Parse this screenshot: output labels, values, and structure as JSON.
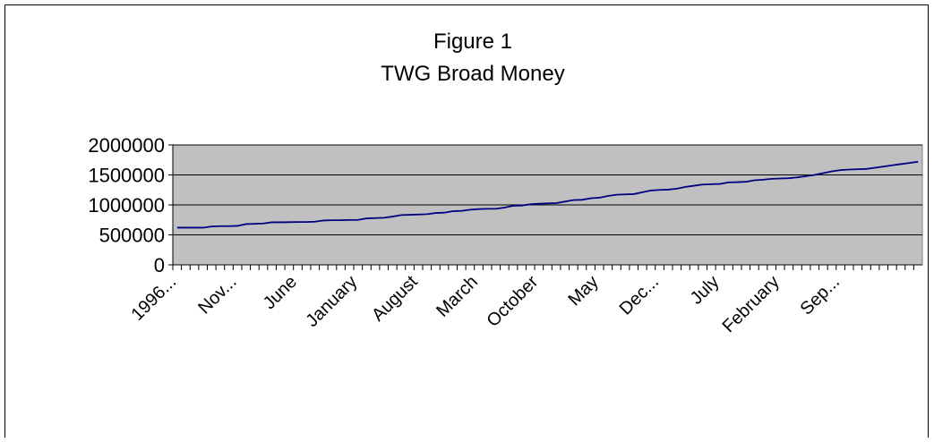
{
  "chart_data": {
    "type": "line",
    "title": "Figure 1",
    "subtitle": "TWG Broad Money",
    "categories": [
      "1996...",
      null,
      null,
      null,
      null,
      null,
      null,
      "Nov...",
      null,
      null,
      null,
      null,
      null,
      null,
      "June",
      null,
      null,
      null,
      null,
      null,
      null,
      "January",
      null,
      null,
      null,
      null,
      null,
      null,
      "August",
      null,
      null,
      null,
      null,
      null,
      null,
      "March",
      null,
      null,
      null,
      null,
      null,
      null,
      "October",
      null,
      null,
      null,
      null,
      null,
      null,
      "May",
      null,
      null,
      null,
      null,
      null,
      null,
      "Dec...",
      null,
      null,
      null,
      null,
      null,
      null,
      "July",
      null,
      null,
      null,
      null,
      null,
      null,
      "February",
      null,
      null,
      null,
      null,
      null,
      null,
      "Sep...",
      null,
      null,
      null,
      null,
      null,
      null,
      null,
      null,
      null
    ],
    "series": [
      {
        "name": "TWG Broad Money",
        "color": "#000080",
        "values": [
          620000,
          620000,
          620000,
          620000,
          640000,
          645000,
          645000,
          650000,
          680000,
          685000,
          690000,
          710000,
          710000,
          712000,
          715000,
          715000,
          720000,
          740000,
          745000,
          745000,
          748000,
          750000,
          775000,
          780000,
          785000,
          805000,
          830000,
          835000,
          840000,
          845000,
          865000,
          870000,
          895000,
          900000,
          920000,
          930000,
          935000,
          935000,
          955000,
          985000,
          990000,
          1010000,
          1020000,
          1025000,
          1030000,
          1055000,
          1080000,
          1085000,
          1110000,
          1120000,
          1150000,
          1170000,
          1175000,
          1180000,
          1210000,
          1240000,
          1250000,
          1255000,
          1270000,
          1300000,
          1320000,
          1340000,
          1345000,
          1350000,
          1375000,
          1380000,
          1385000,
          1410000,
          1420000,
          1435000,
          1440000,
          1445000,
          1460000,
          1480000,
          1500000,
          1530000,
          1560000,
          1580000,
          1590000,
          1595000,
          1600000,
          1620000,
          1640000,
          1660000,
          1680000,
          1700000,
          1720000
        ]
      }
    ],
    "ylim": [
      0,
      2000000
    ],
    "yticks": [
      0,
      500000,
      1000000,
      1500000,
      2000000
    ],
    "grid": true,
    "plot_background": "#c0c0c0"
  }
}
